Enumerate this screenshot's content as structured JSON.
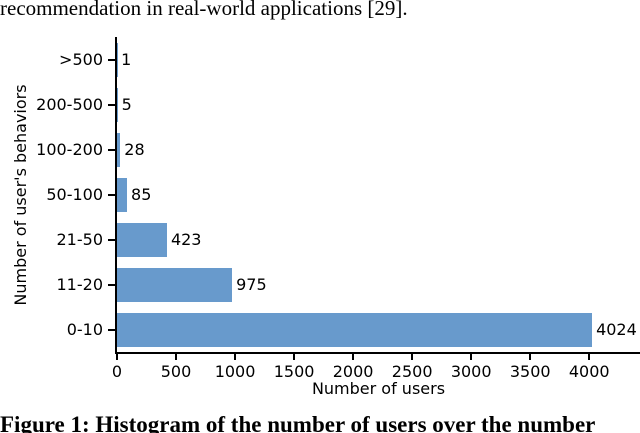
{
  "page": {
    "body_text": "recommendation in real-world applications [29].",
    "caption": "Figure 1: Histogram of the number of users over the number"
  },
  "chart_data": {
    "type": "bar",
    "orientation": "horizontal",
    "title": "",
    "categories": [
      ">500",
      "200-500",
      "100-200",
      "50-100",
      "21-50",
      "11-20",
      "0-10"
    ],
    "values": [
      1,
      5,
      28,
      85,
      423,
      975,
      4024
    ],
    "category_order": "top-to-bottom",
    "xlabel": "Number of users",
    "ylabel": "Number of user's behaviors",
    "x_ticks": [
      0,
      500,
      1000,
      1500,
      2000,
      2500,
      3000,
      3500,
      4000
    ],
    "xlim": [
      0,
      4430
    ],
    "grid": false,
    "legend": null,
    "show_value_labels": true,
    "bar_color": "#689ACC",
    "axis_color": "#000000",
    "text_color": "#000000"
  }
}
